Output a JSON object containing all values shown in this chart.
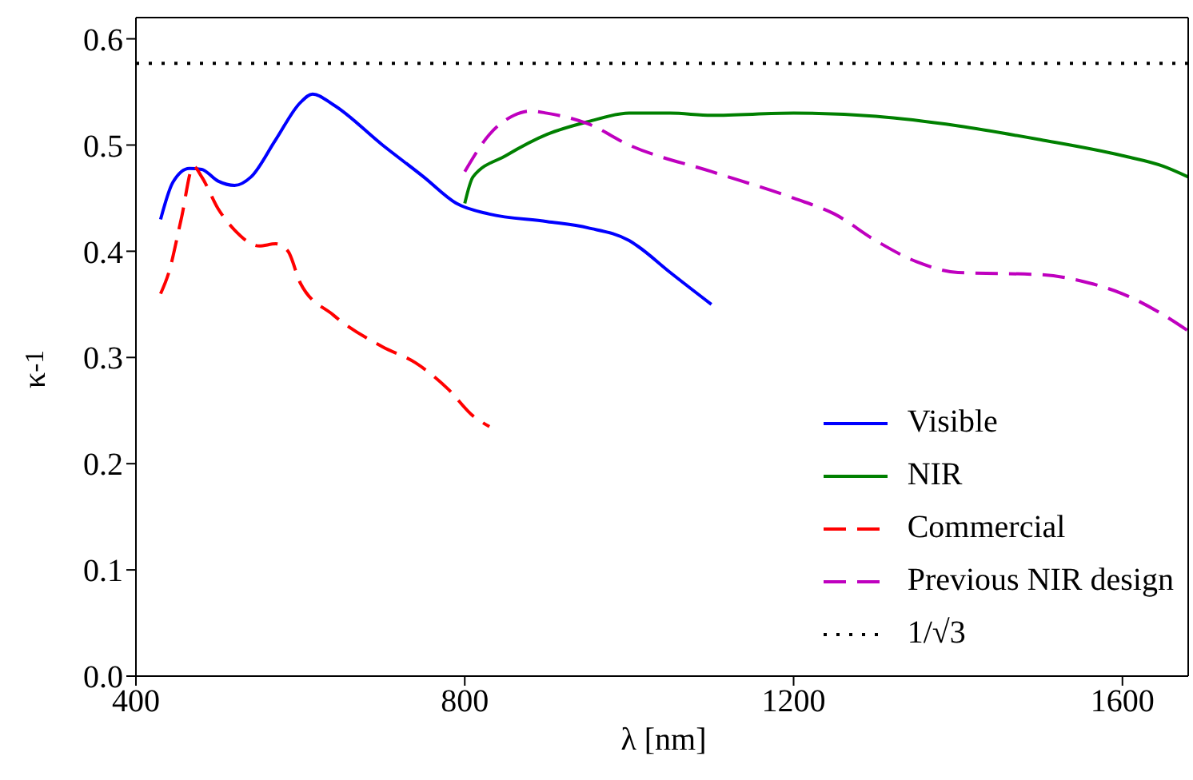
{
  "chart_data": {
    "type": "line",
    "xlabel": "λ [nm]",
    "ylabel": "κ$^{-1}$",
    "xlim": [
      400,
      1680
    ],
    "ylim": [
      0,
      0.62
    ],
    "xticks": [
      400,
      800,
      1200,
      1600
    ],
    "yticks": [
      {
        "value": 0,
        "label": "0.0"
      },
      0.1,
      0.2,
      0.3,
      0.4,
      0.5,
      0.6
    ],
    "legend": "bottom right",
    "marker": "none",
    "series": [
      {
        "name": "Visible",
        "color": "#0000ff",
        "line_style": "solid",
        "x": [
          430,
          445,
          465,
          480,
          500,
          520,
          540,
          570,
          600,
          615,
          640,
          700,
          750,
          790,
          830,
          900,
          950,
          1000,
          1010,
          1050,
          1100
        ],
        "values": [
          0.43,
          0.465,
          0.478,
          0.477,
          0.466,
          0.462,
          0.47,
          0.505,
          0.54,
          0.548,
          0.538,
          0.5,
          0.47,
          0.445,
          0.435,
          0.428,
          0.422,
          0.41,
          0.405,
          0.38,
          0.35
        ]
      },
      {
        "name": "NIR",
        "color": "#008000",
        "line_style": "solid",
        "x": [
          800,
          810,
          850,
          900,
          950,
          1000,
          1050,
          1100,
          1200,
          1300,
          1400,
          1500,
          1600,
          1650,
          1680
        ],
        "values": [
          0.445,
          0.47,
          0.49,
          0.51,
          0.522,
          0.53,
          0.53,
          0.528,
          0.53,
          0.527,
          0.518,
          0.505,
          0.49,
          0.48,
          0.47
        ]
      },
      {
        "name": "Commercial",
        "color": "#ff0000",
        "line_style": "dashed",
        "x": [
          430,
          440,
          455,
          470,
          480,
          500,
          520,
          550,
          570,
          585,
          600,
          640,
          700,
          740,
          780,
          810,
          830
        ],
        "values": [
          0.36,
          0.38,
          0.43,
          0.48,
          0.47,
          0.44,
          0.42,
          0.405,
          0.407,
          0.4,
          0.37,
          0.34,
          0.31,
          0.295,
          0.27,
          0.245,
          0.235
        ]
      },
      {
        "name": "Previous NIR design",
        "color": "#bf00bf",
        "line_style": "dashed",
        "x": [
          800,
          830,
          860,
          880,
          900,
          950,
          1000,
          1100,
          1200,
          1250,
          1300,
          1350,
          1400,
          1500,
          1560,
          1600,
          1650,
          1680
        ],
        "values": [
          0.475,
          0.51,
          0.528,
          0.532,
          0.53,
          0.52,
          0.5,
          0.475,
          0.45,
          0.435,
          0.41,
          0.39,
          0.38,
          0.378,
          0.37,
          0.36,
          0.34,
          0.325
        ]
      }
    ],
    "ref_lines": [
      {
        "axis": "y",
        "value": 0.577,
        "label": "1/√3",
        "color": "#000000",
        "line_style": "dotted"
      }
    ]
  }
}
